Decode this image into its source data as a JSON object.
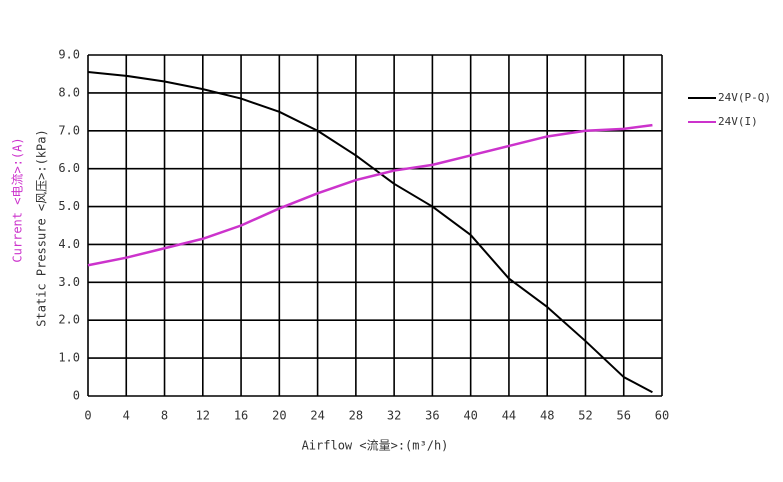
{
  "chart_data": {
    "type": "line",
    "x_label": "Airflow <流量>:(m³/h)",
    "y_label": "Static Pressure <风压>:(kPa)",
    "y_label_2": "Current <电流>:(A)",
    "x": [
      0,
      4,
      8,
      12,
      16,
      20,
      24,
      28,
      32,
      36,
      40,
      44,
      48,
      52,
      56,
      59
    ],
    "series": [
      {
        "name": "24V(P-Q)",
        "color": "#000000",
        "values": [
          8.55,
          8.45,
          8.3,
          8.1,
          7.85,
          7.5,
          7.0,
          6.35,
          5.6,
          5.0,
          4.25,
          3.1,
          2.35,
          1.45,
          0.5,
          0.1
        ]
      },
      {
        "name": "24V(I)",
        "color": "#cc33cc",
        "values": [
          3.45,
          3.65,
          3.9,
          4.15,
          4.5,
          4.95,
          5.35,
          5.7,
          5.95,
          6.1,
          6.35,
          6.6,
          6.85,
          7.0,
          7.05,
          7.15
        ]
      }
    ],
    "xlim": [
      0,
      60
    ],
    "xticks": [
      0,
      4,
      8,
      12,
      16,
      20,
      24,
      28,
      32,
      36,
      40,
      44,
      48,
      52,
      56,
      60
    ],
    "ylim": [
      0,
      9
    ],
    "yticks": [
      0,
      {
        "value": 1,
        "label": "1.0"
      },
      {
        "value": 2,
        "label": "2.0"
      },
      {
        "value": 3,
        "label": "3.0"
      },
      {
        "value": 4,
        "label": "4.0"
      },
      {
        "value": 5,
        "label": "5.0"
      },
      {
        "value": 6,
        "label": "6.0"
      },
      {
        "value": 7,
        "label": "7.0"
      },
      {
        "value": 8,
        "label": "8.0"
      },
      {
        "value": 9,
        "label": "9.0"
      }
    ],
    "grid": true,
    "legend": "right"
  }
}
